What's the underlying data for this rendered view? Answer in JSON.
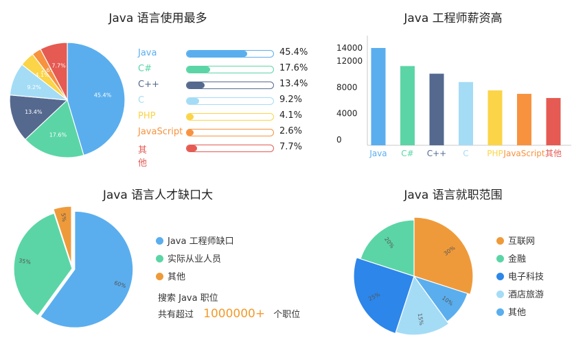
{
  "chart_data": [
    {
      "type": "pie",
      "title": "Java 语言使用最多",
      "series": [
        {
          "name": "Java",
          "value": 45.4,
          "pct_label": "45.4%",
          "color": "#5aaeee"
        },
        {
          "name": "C#",
          "value": 17.6,
          "pct_label": "17.6%",
          "color": "#5bd5a6"
        },
        {
          "name": "C++",
          "value": 13.4,
          "pct_label": "13.4%",
          "color": "#55698f"
        },
        {
          "name": "C",
          "value": 9.2,
          "pct_label": "9.2%",
          "color": "#a4dcf6"
        },
        {
          "name": "PHP",
          "value": 4.1,
          "pct_label": "4.1%",
          "color": "#fbd447"
        },
        {
          "name": "JavaScript",
          "value": 2.6,
          "pct_label": "2.6%",
          "color": "#f7923f"
        },
        {
          "name": "其他",
          "value": 7.7,
          "pct_label": "7.7%",
          "color": "#e55a52"
        }
      ]
    },
    {
      "type": "bar",
      "title": "Java 工程师薪资高",
      "categories": [
        "Java",
        "C#",
        "C++",
        "C",
        "PHP",
        "JavaScript",
        "其他"
      ],
      "values": [
        14000,
        11400,
        10300,
        9100,
        7900,
        7400,
        6800
      ],
      "colors": [
        "#5aaeee",
        "#5bd5a6",
        "#55698f",
        "#a4dcf6",
        "#fbd447",
        "#f7923f",
        "#e55a52"
      ],
      "yticks": [
        0,
        4000,
        8000,
        12000,
        14000
      ],
      "ylim": [
        0,
        14000
      ]
    },
    {
      "type": "pie",
      "title": "Java 语言人才缺口大",
      "series": [
        {
          "name": "Java 工程师缺口",
          "value": 60,
          "pct_label": "60%",
          "color": "#5aaeee"
        },
        {
          "name": "实际从业人员",
          "value": 35,
          "pct_label": "35%",
          "color": "#5bd5a6"
        },
        {
          "name": "其他",
          "value": 5,
          "pct_label": "5%",
          "color": "#ef9a3a"
        }
      ],
      "note": {
        "line1": "搜索 Java 职位",
        "prefix": "共有超过",
        "count": "1000000+",
        "suffix": "个职位"
      }
    },
    {
      "type": "pie",
      "title": "Java 语言就职范围",
      "series": [
        {
          "name": "互联网",
          "value": 30,
          "pct_label": "30%",
          "color": "#ef9a3a"
        },
        {
          "name": "其他",
          "value": 10,
          "pct_label": "10%",
          "color": "#5aaeee"
        },
        {
          "name": "酒店旅游",
          "value": 15,
          "pct_label": "15%",
          "color": "#a4dcf6"
        },
        {
          "name": "电子科技",
          "value": 25,
          "pct_label": "25%",
          "color": "#2d86ea"
        },
        {
          "name": "金融",
          "value": 20,
          "pct_label": "20%",
          "color": "#5bd5a6"
        }
      ],
      "legend_order": [
        0,
        4,
        3,
        2,
        1
      ]
    }
  ]
}
